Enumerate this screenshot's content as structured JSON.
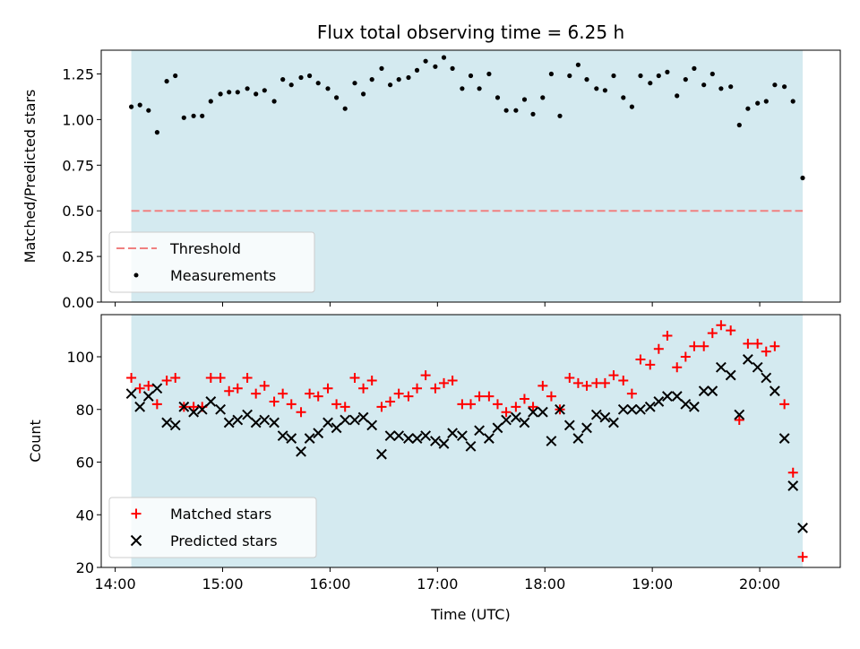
{
  "chart_data": [
    {
      "type": "scatter",
      "panel": "top",
      "title": "Flux total observing time = 6.25 h",
      "xlabel": "",
      "ylabel": "Matched/Predicted stars",
      "ylim": [
        0.0,
        1.38
      ],
      "xlim": [
        13.87,
        20.75
      ],
      "yticks": [
        "0.00",
        "0.25",
        "0.50",
        "0.75",
        "1.00",
        "1.25"
      ],
      "shaded_span": [
        14.15,
        20.4
      ],
      "shade_color": "#d4eaf0",
      "threshold": {
        "name": "Threshold",
        "y": 0.5,
        "color": "#f08080",
        "style": "dashed"
      },
      "series": [
        {
          "name": "Measurements",
          "marker": "dot",
          "color": "#000000",
          "x": [
            14.15,
            14.23,
            14.31,
            14.39,
            14.48,
            14.56,
            14.64,
            14.73,
            14.81,
            14.89,
            14.98,
            15.06,
            15.14,
            15.23,
            15.31,
            15.39,
            15.48,
            15.56,
            15.64,
            15.73,
            15.81,
            15.89,
            15.98,
            16.06,
            16.14,
            16.23,
            16.31,
            16.39,
            16.48,
            16.56,
            16.64,
            16.73,
            16.81,
            16.89,
            16.98,
            17.06,
            17.14,
            17.23,
            17.31,
            17.39,
            17.48,
            17.56,
            17.64,
            17.73,
            17.81,
            17.89,
            17.98,
            18.06,
            18.14,
            18.23,
            18.31,
            18.39,
            18.48,
            18.56,
            18.64,
            18.73,
            18.81,
            18.89,
            18.98,
            19.06,
            19.14,
            19.23,
            19.31,
            19.39,
            19.48,
            19.56,
            19.64,
            19.73,
            19.81,
            19.89,
            19.98,
            20.06,
            20.14,
            20.23,
            20.31,
            20.4
          ],
          "y": [
            1.07,
            1.08,
            1.05,
            0.93,
            1.21,
            1.24,
            1.01,
            1.02,
            1.02,
            1.1,
            1.14,
            1.15,
            1.15,
            1.17,
            1.14,
            1.16,
            1.1,
            1.22,
            1.19,
            1.23,
            1.24,
            1.2,
            1.17,
            1.12,
            1.06,
            1.2,
            1.14,
            1.22,
            1.28,
            1.19,
            1.22,
            1.23,
            1.27,
            1.32,
            1.29,
            1.34,
            1.28,
            1.17,
            1.24,
            1.17,
            1.25,
            1.12,
            1.05,
            1.05,
            1.11,
            1.03,
            1.12,
            1.25,
            1.02,
            1.24,
            1.3,
            1.22,
            1.17,
            1.16,
            1.24,
            1.12,
            1.07,
            1.24,
            1.2,
            1.24,
            1.26,
            1.13,
            1.22,
            1.28,
            1.19,
            1.25,
            1.17,
            1.18,
            0.97,
            1.06,
            1.09,
            1.1,
            1.19,
            1.18,
            1.1,
            0.68
          ]
        }
      ],
      "legend": {
        "placement": "lower-left",
        "entries": [
          "Threshold",
          "Measurements"
        ]
      }
    },
    {
      "type": "scatter",
      "panel": "bottom",
      "title": "",
      "xlabel": "Time (UTC)",
      "ylabel": "Count",
      "ylim": [
        20,
        116
      ],
      "xlim": [
        13.87,
        20.75
      ],
      "yticks": [
        "20",
        "40",
        "60",
        "80",
        "100"
      ],
      "xticks": [
        "14:00",
        "15:00",
        "16:00",
        "17:00",
        "18:00",
        "19:00",
        "20:00"
      ],
      "shaded_span": [
        14.15,
        20.4
      ],
      "shade_color": "#d4eaf0",
      "x": [
        14.15,
        14.23,
        14.31,
        14.39,
        14.48,
        14.56,
        14.64,
        14.73,
        14.81,
        14.89,
        14.98,
        15.06,
        15.14,
        15.23,
        15.31,
        15.39,
        15.48,
        15.56,
        15.64,
        15.73,
        15.81,
        15.89,
        15.98,
        16.06,
        16.14,
        16.23,
        16.31,
        16.39,
        16.48,
        16.56,
        16.64,
        16.73,
        16.81,
        16.89,
        16.98,
        17.06,
        17.14,
        17.23,
        17.31,
        17.39,
        17.48,
        17.56,
        17.64,
        17.73,
        17.81,
        17.89,
        17.98,
        18.06,
        18.14,
        18.23,
        18.31,
        18.39,
        18.48,
        18.56,
        18.64,
        18.73,
        18.81,
        18.89,
        18.98,
        19.06,
        19.14,
        19.23,
        19.31,
        19.39,
        19.48,
        19.56,
        19.64,
        19.73,
        19.81,
        19.89,
        19.98,
        20.06,
        20.14,
        20.23,
        20.31,
        20.4
      ],
      "series": [
        {
          "name": "Matched stars",
          "marker": "plus",
          "color": "#ff0000",
          "values": [
            92,
            88,
            89,
            82,
            91,
            92,
            81,
            81,
            81,
            92,
            92,
            87,
            88,
            92,
            86,
            89,
            83,
            86,
            82,
            79,
            86,
            85,
            88,
            82,
            81,
            92,
            88,
            91,
            81,
            83,
            86,
            85,
            88,
            93,
            88,
            90,
            91,
            82,
            82,
            85,
            85,
            82,
            79,
            81,
            84,
            81,
            89,
            85,
            80,
            92,
            90,
            89,
            90,
            90,
            93,
            91,
            86,
            99,
            97,
            103,
            108,
            96,
            100,
            104,
            104,
            109,
            112,
            110,
            76,
            105,
            105,
            102,
            104,
            82,
            56,
            24
          ]
        },
        {
          "name": "Predicted stars",
          "marker": "x",
          "color": "#000000",
          "values": [
            86,
            81,
            85,
            88,
            75,
            74,
            81,
            79,
            80,
            83,
            80,
            75,
            76,
            78,
            75,
            76,
            75,
            70,
            69,
            64,
            69,
            71,
            75,
            73,
            76,
            76,
            77,
            74,
            63,
            70,
            70,
            69,
            69,
            70,
            68,
            67,
            71,
            70,
            66,
            72,
            69,
            73,
            76,
            77,
            75,
            79,
            79,
            68,
            80,
            74,
            69,
            73,
            78,
            77,
            75,
            80,
            80,
            80,
            81,
            83,
            85,
            85,
            82,
            81,
            87,
            87,
            96,
            93,
            78,
            99,
            96,
            92,
            87,
            69,
            51,
            35
          ]
        }
      ],
      "legend": {
        "placement": "lower-left",
        "entries": [
          "Matched stars",
          "Predicted stars"
        ]
      }
    }
  ]
}
